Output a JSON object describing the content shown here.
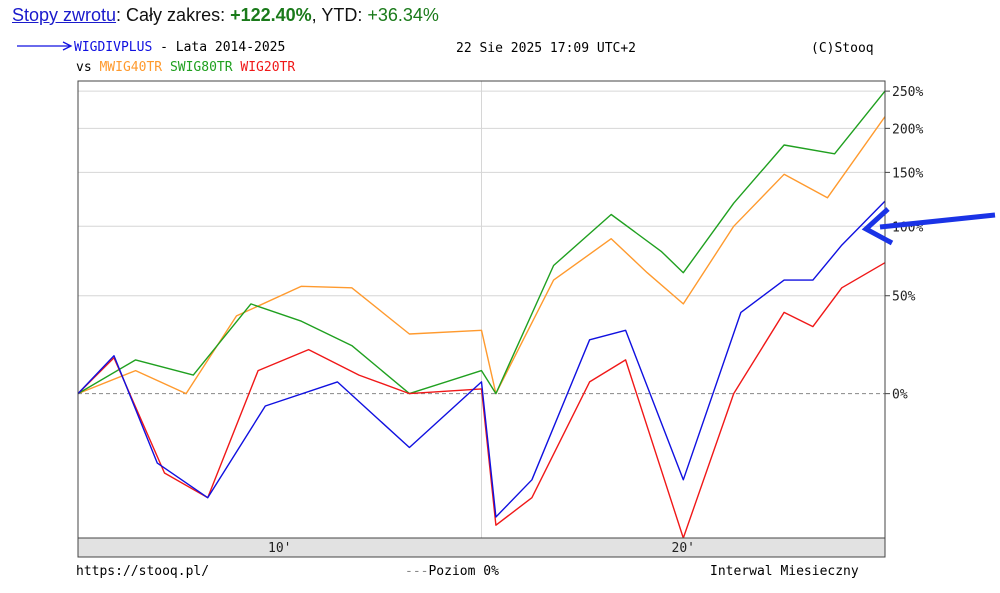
{
  "header": {
    "link_label": "Stopy zwrotu",
    "range_label": ": Cały zakres: ",
    "range_value": "+122.40%",
    "ytd_label": ", YTD: ",
    "ytd_value": "+36.34%"
  },
  "legend": {
    "main_symbol": "WIGDIVPLUS",
    "main_suffix": " - Lata 2014-2025",
    "vs_label": "vs",
    "date": "22 Sie 2025 17:09 UTC+2",
    "copyright": "(C)Stooq"
  },
  "footer": {
    "url": "https://stooq.pl/",
    "zero_level": "Poziom 0%",
    "interval": "Interwal Miesieczny"
  },
  "colors": {
    "WIGDIVPLUS": "#1010e0",
    "MWIG40TR": "#ff9a2e",
    "SWIG80TR": "#20a020",
    "WIG20TR": "#f01818",
    "annotation_arrow": "#1a33e6"
  },
  "annotation": {
    "icon": "arrow-left-icon"
  },
  "chart_data": {
    "type": "line",
    "title": "WIGDIVPLUS - Lata 2014-2025",
    "x_axis": {
      "tick_labels": [
        "10'",
        "20'"
      ],
      "range": [
        "2014-05",
        "2025-08"
      ]
    },
    "y_axis": {
      "scale": "log",
      "tick_labels": [
        "250%",
        "200%",
        "150%",
        "100%",
        "50%",
        "0%"
      ],
      "ticks": [
        250,
        200,
        150,
        100,
        50,
        0
      ],
      "range": [
        -45,
        265
      ]
    },
    "grid": true,
    "series": [
      {
        "name": "WIGDIVPLUS",
        "x": [
          2014.4,
          2014.9,
          2015.5,
          2016.2,
          2017.0,
          2018.0,
          2019.0,
          2020.0,
          2020.2,
          2020.7,
          2021.5,
          2022.0,
          2022.8,
          2023.6,
          2024.2,
          2024.6,
          2025.0,
          2025.6
        ],
        "values": [
          0,
          17,
          -25,
          -35,
          -5,
          5,
          -20,
          5,
          -40,
          -30,
          25,
          30,
          -30,
          40,
          60,
          60,
          85,
          122
        ]
      },
      {
        "name": "MWIG40TR",
        "x": [
          2014.4,
          2015.2,
          2015.9,
          2016.6,
          2017.5,
          2018.2,
          2019.0,
          2020.0,
          2020.2,
          2021.0,
          2021.8,
          2022.3,
          2022.8,
          2023.5,
          2024.2,
          2024.8,
          2025.6
        ],
        "values": [
          0,
          10,
          0,
          38,
          56,
          55,
          28,
          30,
          0,
          60,
          90,
          65,
          45,
          100,
          148,
          125,
          215
        ]
      },
      {
        "name": "SWIG80TR",
        "x": [
          2014.4,
          2015.2,
          2016.0,
          2016.8,
          2017.5,
          2018.2,
          2019.0,
          2020.0,
          2020.2,
          2021.0,
          2021.8,
          2022.5,
          2022.8,
          2023.5,
          2024.2,
          2024.9,
          2025.6
        ],
        "values": [
          0,
          15,
          8,
          45,
          35,
          22,
          0,
          10,
          0,
          70,
          110,
          80,
          65,
          120,
          180,
          170,
          250
        ]
      },
      {
        "name": "WIG20TR",
        "x": [
          2014.4,
          2014.9,
          2015.6,
          2016.2,
          2016.9,
          2017.6,
          2018.3,
          2019.0,
          2020.0,
          2020.2,
          2020.7,
          2021.5,
          2022.0,
          2022.8,
          2023.5,
          2024.2,
          2024.6,
          2025.0,
          2025.6
        ],
        "values": [
          0,
          16,
          -28,
          -35,
          10,
          20,
          8,
          0,
          2,
          -42,
          -35,
          5,
          15,
          -45,
          0,
          40,
          32,
          55,
          72
        ]
      }
    ]
  }
}
